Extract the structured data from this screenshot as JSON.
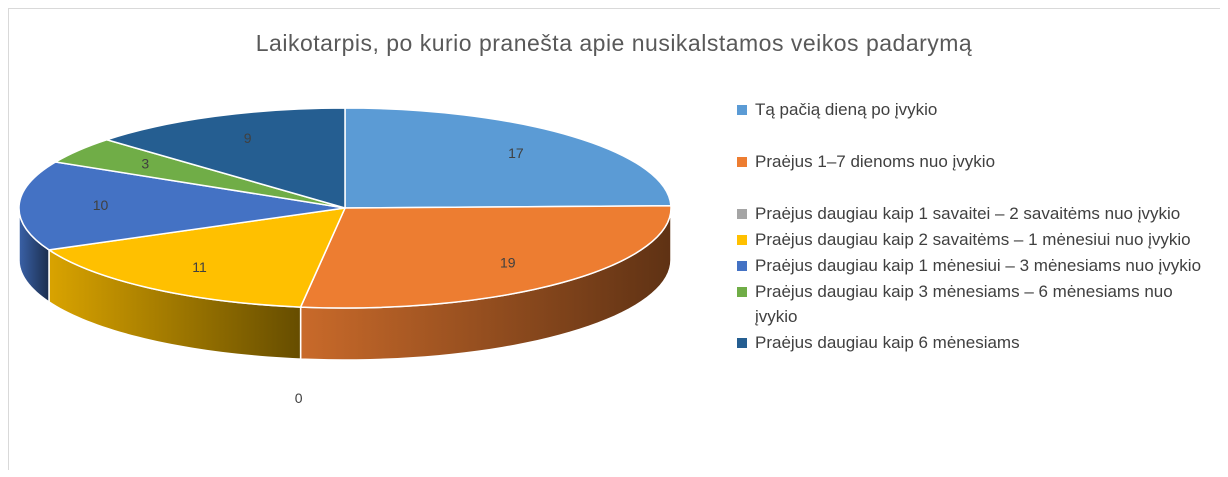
{
  "chart_data": {
    "type": "pie",
    "title": "Laikotarpis, po kurio pranešta apie nusikalstamos veikos padarymą",
    "categories": [
      "Tą pačią dieną po įvykio",
      "Praėjus 1–7 dienoms nuo įvykio",
      "Praėjus daugiau kaip 1 savaitei – 2 savaitėms nuo įvykio",
      "Praėjus daugiau kaip 2 savaitėms – 1 mėnesiui nuo įvykio",
      "Praėjus daugiau kaip 1 mėnesiui – 3 mėnesiams nuo įvykio",
      "Praėjus daugiau kaip 3 mėnesiams – 6 mėnesiams nuo įvykio",
      "Praėjus daugiau kaip 6 mėnesiams"
    ],
    "values": [
      17,
      19,
      0,
      11,
      10,
      3,
      9
    ],
    "colors": [
      "#5b9bd5",
      "#ed7d31",
      "#a5a5a5",
      "#ffc000",
      "#4472c4",
      "#70ad47",
      "#255e91"
    ],
    "legend": "right"
  }
}
